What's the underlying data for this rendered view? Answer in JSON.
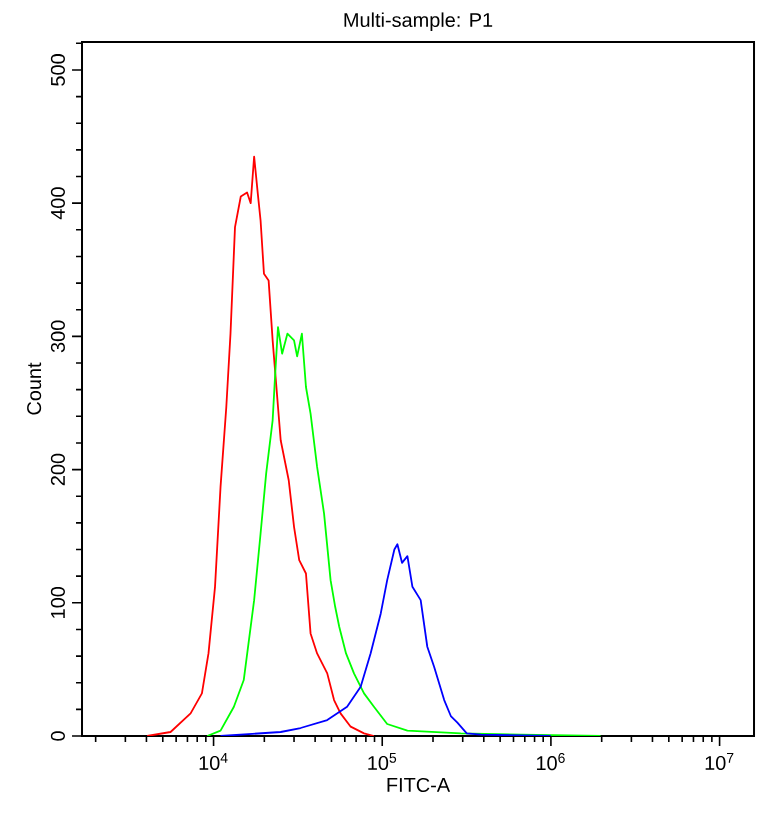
{
  "chart_data": {
    "type": "line",
    "title": "Multi-sample: P1",
    "xlabel": "FITC-A",
    "ylabel": "Count",
    "log": "x",
    "marker": "none",
    "line_style": "solid",
    "xlim": [
      1660,
      16000000
    ],
    "ylim": [
      0,
      521
    ],
    "xticks": [
      {
        "value": 2000,
        "label": null
      },
      {
        "value": 3000,
        "label": null
      },
      {
        "value": 4000,
        "label": null
      },
      {
        "value": 5000,
        "label": null
      },
      {
        "value": 6000,
        "label": null
      },
      {
        "value": 7000,
        "label": null
      },
      {
        "value": 8000,
        "label": null
      },
      {
        "value": 9000,
        "label": null
      },
      {
        "value": 10000,
        "label": "10$^{4}$"
      },
      {
        "value": 20000,
        "label": null
      },
      {
        "value": 30000,
        "label": null
      },
      {
        "value": 40000,
        "label": null
      },
      {
        "value": 50000,
        "label": null
      },
      {
        "value": 60000,
        "label": null
      },
      {
        "value": 70000,
        "label": null
      },
      {
        "value": 80000,
        "label": null
      },
      {
        "value": 90000,
        "label": null
      },
      {
        "value": 100000,
        "label": "10$^{5}$"
      },
      {
        "value": 200000,
        "label": null
      },
      {
        "value": 300000,
        "label": null
      },
      {
        "value": 400000,
        "label": null
      },
      {
        "value": 500000,
        "label": null
      },
      {
        "value": 600000,
        "label": null
      },
      {
        "value": 700000,
        "label": null
      },
      {
        "value": 800000,
        "label": null
      },
      {
        "value": 900000,
        "label": null
      },
      {
        "value": 1000000,
        "label": "10$^{6}$"
      },
      {
        "value": 2000000,
        "label": null
      },
      {
        "value": 3000000,
        "label": null
      },
      {
        "value": 4000000,
        "label": null
      },
      {
        "value": 5000000,
        "label": null
      },
      {
        "value": 6000000,
        "label": null
      },
      {
        "value": 7000000,
        "label": null
      },
      {
        "value": 8000000,
        "label": null
      },
      {
        "value": 9000000,
        "label": null
      },
      {
        "value": 10000000,
        "label": "10$^{7}$"
      }
    ],
    "yticks": [
      0,
      {
        "value": 20,
        "label": null
      },
      {
        "value": 40,
        "label": null
      },
      {
        "value": 60,
        "label": null
      },
      {
        "value": 80,
        "label": null
      },
      100,
      {
        "value": 120,
        "label": null
      },
      {
        "value": 140,
        "label": null
      },
      {
        "value": 160,
        "label": null
      },
      {
        "value": 180,
        "label": null
      },
      200,
      {
        "value": 220,
        "label": null
      },
      {
        "value": 240,
        "label": null
      },
      {
        "value": 260,
        "label": null
      },
      {
        "value": 280,
        "label": null
      },
      300,
      {
        "value": 320,
        "label": null
      },
      {
        "value": 340,
        "label": null
      },
      {
        "value": 360,
        "label": null
      },
      {
        "value": 380,
        "label": null
      },
      400,
      {
        "value": 420,
        "label": null
      },
      {
        "value": 440,
        "label": null
      },
      {
        "value": 460,
        "label": null
      },
      {
        "value": 480,
        "label": null
      },
      500,
      {
        "value": 520,
        "label": null
      }
    ],
    "series": [
      {
        "color": "#ff0000",
        "x": [
          4040,
          5560,
          7310,
          8530,
          9330,
          10200,
          11000,
          11900,
          12600,
          13400,
          14500,
          15800,
          16600,
          17400,
          18300,
          19000,
          19900,
          21200,
          22400,
          25000,
          27900,
          30000,
          32200,
          35300,
          37600,
          41100,
          47200,
          51800,
          56600,
          65000,
          78000,
          89300
        ],
        "values": [
          0,
          3,
          17,
          32,
          62,
          112,
          187,
          247,
          302,
          382,
          405,
          408,
          400,
          435,
          407,
          387,
          347,
          342,
          297,
          222,
          192,
          157,
          132,
          122,
          77,
          62,
          47,
          27,
          17,
          7,
          2,
          0
        ]
      },
      {
        "color": "#00ff00",
        "x": [
          9160,
          11000,
          13200,
          15100,
          17400,
          19000,
          20500,
          22400,
          23200,
          24100,
          25500,
          27400,
          30000,
          31300,
          33400,
          35300,
          37600,
          41100,
          45200,
          49400,
          52600,
          55600,
          61000,
          68000,
          78000,
          89300,
          107000,
          141000,
          292000,
          662000,
          1970000
        ],
        "values": [
          0,
          4,
          22,
          42,
          102,
          152,
          197,
          237,
          272,
          307,
          287,
          302,
          297,
          285,
          302,
          262,
          242,
          202,
          167,
          117,
          97,
          82,
          62,
          47,
          32,
          22,
          9,
          4,
          2,
          1,
          0
        ]
      },
      {
        "color": "#0000ff",
        "x": [
          11000,
          25000,
          32800,
          47200,
          61900,
          74500,
          85300,
          98000,
          107000,
          118000,
          123000,
          131000,
          141000,
          151000,
          169000,
          185000,
          203000,
          233000,
          255000,
          279000,
          317000,
          384000,
          998000
        ],
        "values": [
          0,
          3,
          6,
          12,
          22,
          37,
          62,
          92,
          117,
          140,
          144,
          130,
          135,
          112,
          102,
          67,
          52,
          27,
          15,
          10,
          2,
          1,
          0
        ]
      }
    ]
  }
}
